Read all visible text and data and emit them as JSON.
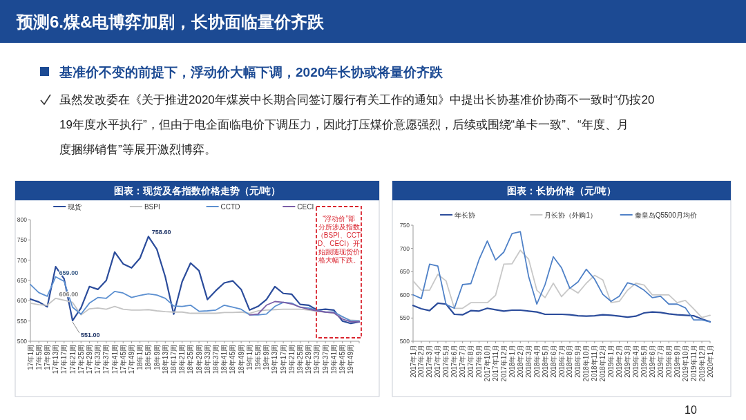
{
  "chart_data": [
    {
      "type": "other",
      "title": "预测6.煤&电博弈加剧，长协面临量价齐跌",
      "subtitle": "基准价不变的前提下，浮动价大幅下调，2020年长协或将量价齐跌",
      "annotations": [
        "虽然发改委在《关于推进2020年煤炭中长期合同签订履行有关工作的通知》中提出长协基准价协商不一致时“仍按2019年度水平执行”，但由于电企面临电价下调压力，因此打压煤价意愿强烈，后续或围绕“单卡一致”、“年度、月度捆绑销售”等展开激烈博弈。",
        "10"
      ]
    },
    {
      "type": "line",
      "title": "图表：现货及各指数价格走势（元/吨）",
      "categories": [
        "17年1周",
        "17年5周",
        "17年9周",
        "17年13周",
        "17年17周",
        "17年21周",
        "17年25周",
        "17年29周",
        "17年33周",
        "17年37周",
        "17年41周",
        "17年45周",
        "17年49周",
        "18年1周",
        "18年5周",
        "18年9周",
        "18年13周",
        "18年17周",
        "18年21周",
        "18年25周",
        "18年29周",
        "18年33周",
        "18年37周",
        "18年41周",
        "18年45周",
        "18年49周",
        "19年1周",
        "19年5周",
        "19年9周",
        "19年13周",
        "19年17周",
        "19年21周",
        "19年25周",
        "19年29周",
        "19年33周",
        "19年37周",
        "19年41周",
        "19年45周",
        "19年49周",
        null
      ],
      "ylim": [
        500,
        800
      ],
      "yticks": [
        500,
        550,
        600,
        650,
        700,
        750,
        800
      ],
      "legend": "top",
      "annotations": [
        "“浮动价”部分所涉及指数（BSPI、CCTD、CECI）开始跟随现货价格大幅下跌。",
        {
          "text": "758.60",
          "x": "18年5周",
          "y": 758.6
        },
        {
          "text": "659.00",
          "x": "17年13周",
          "y": 659
        },
        {
          "text": "606.00",
          "x": "17年13周",
          "y": 606
        },
        {
          "text": "551.00",
          "x": "17年21周",
          "y": 551
        }
      ],
      "series": [
        {
          "name": "现货",
          "color": "#2b4c9b",
          "values": [
            604,
            597,
            585,
            684,
            654,
            551,
            582,
            635,
            628,
            650,
            720,
            691,
            681,
            705,
            758.6,
            727,
            659,
            567,
            647,
            693,
            674,
            603,
            625,
            644,
            649,
            628,
            577,
            586,
            603,
            635,
            618,
            616,
            591,
            589,
            577,
            579,
            577,
            550,
            544,
            548
          ]
        },
        {
          "name": "BSPI",
          "color": "#c4c4c4",
          "values": [
            594,
            590,
            589,
            606,
            601,
            596,
            565,
            580,
            582,
            579,
            586,
            579,
            577,
            577,
            578,
            575,
            573,
            572,
            572,
            569,
            569,
            569,
            569,
            571,
            571,
            572,
            569,
            575,
            577,
            578,
            579,
            579,
            579,
            577,
            574,
            572,
            569,
            560,
            552,
            551
          ]
        },
        {
          "name": "CCTD",
          "color": "#5b8fd0",
          "values": [
            640,
            620,
            611,
            659,
            648,
            584,
            567,
            594,
            608,
            606,
            623,
            619,
            608,
            613,
            617,
            614,
            606,
            587,
            586,
            589,
            574,
            575,
            577,
            589,
            584,
            579,
            565,
            565,
            567,
            586,
            596,
            594,
            584,
            582,
            577,
            572,
            572,
            561,
            550,
            550
          ]
        },
        {
          "name": "CECI",
          "color": "#7b5ea7",
          "values": [
            null,
            null,
            null,
            null,
            null,
            null,
            null,
            null,
            null,
            null,
            null,
            null,
            null,
            null,
            null,
            null,
            null,
            null,
            null,
            null,
            null,
            null,
            null,
            null,
            null,
            null,
            565,
            567,
            589,
            598,
            596,
            592,
            584,
            579,
            575,
            572,
            570,
            555,
            548,
            548
          ]
        }
      ]
    },
    {
      "type": "line",
      "title": "图表：长协价格（元/吨）",
      "categories": [
        "2017年1月",
        "2017年2月",
        "2017年3月",
        "2017年4月",
        "2017年5月",
        "2017年6月",
        "2017年7月",
        "2017年8月",
        "2017年9月",
        "2017年10月",
        "2017年11月",
        "2017年12月",
        "2018年1月",
        "2018年2月",
        "2018年3月",
        "2018年4月",
        "2018年5月",
        "2018年6月",
        "2018年7月",
        "2018年8月",
        "2018年9月",
        "2018年10月",
        "2018年11月",
        "2018年12月",
        "2019年1月",
        "2019年2月",
        "2019年3月",
        "2019年4月",
        "2019年5月",
        "2019年6月",
        "2019年7月",
        "2019年8月",
        "2019年9月",
        "2019年10月",
        "2019年11月",
        "2019年12月",
        "2020年1月"
      ],
      "ylim": [
        500,
        750
      ],
      "yticks": [
        500,
        550,
        600,
        650,
        700,
        750
      ],
      "legend": "top",
      "series": [
        {
          "name": "年长协",
          "color": "#2b4c9b",
          "values": [
            577,
            570,
            566,
            582,
            580,
            558,
            557,
            566,
            565,
            571,
            568,
            565,
            567,
            567,
            565,
            563,
            558,
            558,
            558,
            557,
            555,
            554,
            555,
            557,
            556,
            554,
            552,
            554,
            561,
            563,
            562,
            559,
            557,
            556,
            555,
            548,
            542
          ]
        },
        {
          "name": "月长协（外购1）",
          "color": "#c8c8c8",
          "values": [
            630,
            610,
            610,
            644,
            630,
            571,
            571,
            583,
            583,
            583,
            599,
            666,
            667,
            696,
            677,
            610,
            594,
            625,
            596,
            615,
            604,
            625,
            642,
            632,
            583,
            586,
            610,
            625,
            621,
            600,
            600,
            600,
            583,
            588,
            570,
            551,
            556
          ]
        },
        {
          "name": "秦皇岛Q5500月均价",
          "color": "#4f81c7",
          "values": [
            600,
            592,
            666,
            662,
            579,
            571,
            622,
            624,
            676,
            716,
            675,
            692,
            732,
            736,
            640,
            580,
            622,
            682,
            658,
            614,
            628,
            655,
            634,
            601,
            586,
            597,
            626,
            621,
            610,
            594,
            597,
            580,
            580,
            572,
            546,
            546,
            542
          ]
        }
      ]
    }
  ]
}
